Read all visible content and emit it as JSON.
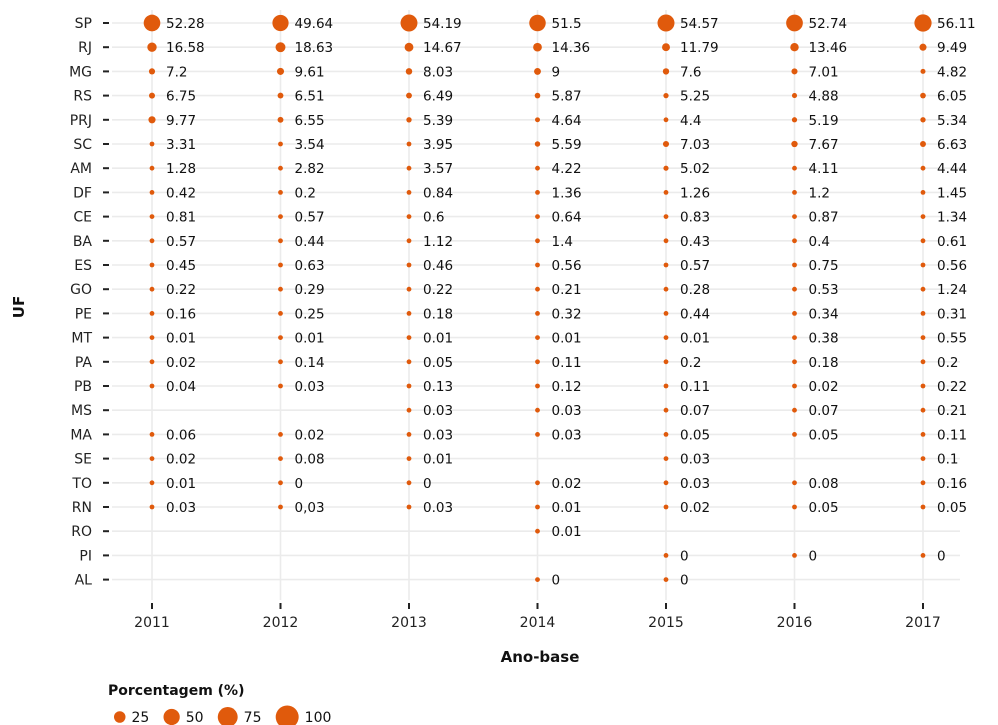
{
  "chart_data": {
    "type": "scatter",
    "title": "",
    "xlabel": "Ano-base",
    "ylabel": "UF",
    "grid": true,
    "legend_position": "bottom-left",
    "marker_color": "#E05A0C",
    "x": [
      "2011",
      "2012",
      "2013",
      "2014",
      "2015",
      "2016",
      "2017"
    ],
    "categories": [
      "SP",
      "RJ",
      "MG",
      "RS",
      "PRJ",
      "SC",
      "AM",
      "DF",
      "CE",
      "BA",
      "ES",
      "GO",
      "PE",
      "MT",
      "PA",
      "PB",
      "MS",
      "MA",
      "SE",
      "TO",
      "RN",
      "RO",
      "PI",
      "AL"
    ],
    "points": [
      {
        "uf": "SP",
        "year": "2011",
        "value": 52.28,
        "label": "52.28"
      },
      {
        "uf": "SP",
        "year": "2012",
        "value": 49.64,
        "label": "49.64"
      },
      {
        "uf": "SP",
        "year": "2013",
        "value": 54.19,
        "label": "54.19"
      },
      {
        "uf": "SP",
        "year": "2014",
        "value": 51.5,
        "label": "51.5"
      },
      {
        "uf": "SP",
        "year": "2015",
        "value": 54.57,
        "label": "54.57"
      },
      {
        "uf": "SP",
        "year": "2016",
        "value": 52.74,
        "label": "52.74"
      },
      {
        "uf": "SP",
        "year": "2017",
        "value": 56.11,
        "label": "56.11"
      },
      {
        "uf": "RJ",
        "year": "2011",
        "value": 16.58,
        "label": "16.58"
      },
      {
        "uf": "RJ",
        "year": "2012",
        "value": 18.63,
        "label": "18.63"
      },
      {
        "uf": "RJ",
        "year": "2013",
        "value": 14.67,
        "label": "14.67"
      },
      {
        "uf": "RJ",
        "year": "2014",
        "value": 14.36,
        "label": "14.36"
      },
      {
        "uf": "RJ",
        "year": "2015",
        "value": 11.79,
        "label": "11.79"
      },
      {
        "uf": "RJ",
        "year": "2016",
        "value": 13.46,
        "label": "13.46"
      },
      {
        "uf": "RJ",
        "year": "2017",
        "value": 9.49,
        "label": "9.49"
      },
      {
        "uf": "MG",
        "year": "2011",
        "value": 7.2,
        "label": "7.2"
      },
      {
        "uf": "MG",
        "year": "2012",
        "value": 9.61,
        "label": "9.61"
      },
      {
        "uf": "MG",
        "year": "2013",
        "value": 8.03,
        "label": "8.03"
      },
      {
        "uf": "MG",
        "year": "2014",
        "value": 9,
        "label": "9"
      },
      {
        "uf": "MG",
        "year": "2015",
        "value": 7.6,
        "label": "7.6"
      },
      {
        "uf": "MG",
        "year": "2016",
        "value": 7.01,
        "label": "7.01"
      },
      {
        "uf": "MG",
        "year": "2017",
        "value": 4.82,
        "label": "4.82"
      },
      {
        "uf": "RS",
        "year": "2011",
        "value": 6.75,
        "label": "6.75"
      },
      {
        "uf": "RS",
        "year": "2012",
        "value": 6.51,
        "label": "6.51"
      },
      {
        "uf": "RS",
        "year": "2013",
        "value": 6.49,
        "label": "6.49"
      },
      {
        "uf": "RS",
        "year": "2014",
        "value": 5.87,
        "label": "5.87"
      },
      {
        "uf": "RS",
        "year": "2015",
        "value": 5.25,
        "label": "5.25"
      },
      {
        "uf": "RS",
        "year": "2016",
        "value": 4.88,
        "label": "4.88"
      },
      {
        "uf": "RS",
        "year": "2017",
        "value": 6.05,
        "label": "6.05"
      },
      {
        "uf": "PRJ",
        "year": "2011",
        "value": 9.77,
        "label": "9.77"
      },
      {
        "uf": "PRJ",
        "year": "2012",
        "value": 6.55,
        "label": "6.55"
      },
      {
        "uf": "PRJ",
        "year": "2013",
        "value": 5.39,
        "label": "5.39"
      },
      {
        "uf": "PRJ",
        "year": "2014",
        "value": 4.64,
        "label": "4.64"
      },
      {
        "uf": "PRJ",
        "year": "2015",
        "value": 4.4,
        "label": "4.4"
      },
      {
        "uf": "PRJ",
        "year": "2016",
        "value": 5.19,
        "label": "5.19"
      },
      {
        "uf": "PRJ",
        "year": "2017",
        "value": 5.34,
        "label": "5.34"
      },
      {
        "uf": "SC",
        "year": "2011",
        "value": 3.31,
        "label": "3.31"
      },
      {
        "uf": "SC",
        "year": "2012",
        "value": 3.54,
        "label": "3.54"
      },
      {
        "uf": "SC",
        "year": "2013",
        "value": 3.95,
        "label": "3.95"
      },
      {
        "uf": "SC",
        "year": "2014",
        "value": 5.59,
        "label": "5.59"
      },
      {
        "uf": "SC",
        "year": "2015",
        "value": 7.03,
        "label": "7.03"
      },
      {
        "uf": "SC",
        "year": "2016",
        "value": 7.67,
        "label": "7.67"
      },
      {
        "uf": "SC",
        "year": "2017",
        "value": 6.63,
        "label": "6.63"
      },
      {
        "uf": "AM",
        "year": "2011",
        "value": 1.28,
        "label": "1.28"
      },
      {
        "uf": "AM",
        "year": "2012",
        "value": 2.82,
        "label": "2.82"
      },
      {
        "uf": "AM",
        "year": "2013",
        "value": 3.57,
        "label": "3.57"
      },
      {
        "uf": "AM",
        "year": "2014",
        "value": 4.22,
        "label": "4.22"
      },
      {
        "uf": "AM",
        "year": "2015",
        "value": 5.02,
        "label": "5.02"
      },
      {
        "uf": "AM",
        "year": "2016",
        "value": 4.11,
        "label": "4.11"
      },
      {
        "uf": "AM",
        "year": "2017",
        "value": 4.44,
        "label": "4.44"
      },
      {
        "uf": "DF",
        "year": "2011",
        "value": 0.42,
        "label": "0.42"
      },
      {
        "uf": "DF",
        "year": "2012",
        "value": 0.2,
        "label": "0.2"
      },
      {
        "uf": "DF",
        "year": "2013",
        "value": 0.84,
        "label": "0.84"
      },
      {
        "uf": "DF",
        "year": "2014",
        "value": 1.36,
        "label": "1.36"
      },
      {
        "uf": "DF",
        "year": "2015",
        "value": 1.26,
        "label": "1.26"
      },
      {
        "uf": "DF",
        "year": "2016",
        "value": 1.2,
        "label": "1.2"
      },
      {
        "uf": "DF",
        "year": "2017",
        "value": 1.45,
        "label": "1.45"
      },
      {
        "uf": "CE",
        "year": "2011",
        "value": 0.81,
        "label": "0.81"
      },
      {
        "uf": "CE",
        "year": "2012",
        "value": 0.57,
        "label": "0.57"
      },
      {
        "uf": "CE",
        "year": "2013",
        "value": 0.6,
        "label": "0.6"
      },
      {
        "uf": "CE",
        "year": "2014",
        "value": 0.64,
        "label": "0.64"
      },
      {
        "uf": "CE",
        "year": "2015",
        "value": 0.83,
        "label": "0.83"
      },
      {
        "uf": "CE",
        "year": "2016",
        "value": 0.87,
        "label": "0.87"
      },
      {
        "uf": "CE",
        "year": "2017",
        "value": 1.34,
        "label": "1.34"
      },
      {
        "uf": "BA",
        "year": "2011",
        "value": 0.57,
        "label": "0.57"
      },
      {
        "uf": "BA",
        "year": "2012",
        "value": 0.44,
        "label": "0.44"
      },
      {
        "uf": "BA",
        "year": "2013",
        "value": 1.12,
        "label": "1.12"
      },
      {
        "uf": "BA",
        "year": "2014",
        "value": 1.4,
        "label": "1.4"
      },
      {
        "uf": "BA",
        "year": "2015",
        "value": 0.43,
        "label": "0.43"
      },
      {
        "uf": "BA",
        "year": "2016",
        "value": 0.4,
        "label": "0.4"
      },
      {
        "uf": "BA",
        "year": "2017",
        "value": 0.61,
        "label": "0.61"
      },
      {
        "uf": "ES",
        "year": "2011",
        "value": 0.45,
        "label": "0.45"
      },
      {
        "uf": "ES",
        "year": "2012",
        "value": 0.63,
        "label": "0.63"
      },
      {
        "uf": "ES",
        "year": "2013",
        "value": 0.46,
        "label": "0.46"
      },
      {
        "uf": "ES",
        "year": "2014",
        "value": 0.56,
        "label": "0.56"
      },
      {
        "uf": "ES",
        "year": "2015",
        "value": 0.57,
        "label": "0.57"
      },
      {
        "uf": "ES",
        "year": "2016",
        "value": 0.75,
        "label": "0.75"
      },
      {
        "uf": "ES",
        "year": "2017",
        "value": 0.56,
        "label": "0.56"
      },
      {
        "uf": "GO",
        "year": "2011",
        "value": 0.22,
        "label": "0.22"
      },
      {
        "uf": "GO",
        "year": "2012",
        "value": 0.29,
        "label": "0.29"
      },
      {
        "uf": "GO",
        "year": "2013",
        "value": 0.22,
        "label": "0.22"
      },
      {
        "uf": "GO",
        "year": "2014",
        "value": 0.21,
        "label": "0.21"
      },
      {
        "uf": "GO",
        "year": "2015",
        "value": 0.28,
        "label": "0.28"
      },
      {
        "uf": "GO",
        "year": "2016",
        "value": 0.53,
        "label": "0.53"
      },
      {
        "uf": "GO",
        "year": "2017",
        "value": 1.24,
        "label": "1.24"
      },
      {
        "uf": "PE",
        "year": "2011",
        "value": 0.16,
        "label": "0.16"
      },
      {
        "uf": "PE",
        "year": "2012",
        "value": 0.25,
        "label": "0.25"
      },
      {
        "uf": "PE",
        "year": "2013",
        "value": 0.18,
        "label": "0.18"
      },
      {
        "uf": "PE",
        "year": "2014",
        "value": 0.32,
        "label": "0.32"
      },
      {
        "uf": "PE",
        "year": "2015",
        "value": 0.44,
        "label": "0.44"
      },
      {
        "uf": "PE",
        "year": "2016",
        "value": 0.34,
        "label": "0.34"
      },
      {
        "uf": "PE",
        "year": "2017",
        "value": 0.31,
        "label": "0.31"
      },
      {
        "uf": "MT",
        "year": "2011",
        "value": 0.01,
        "label": "0.01"
      },
      {
        "uf": "MT",
        "year": "2012",
        "value": 0.01,
        "label": "0.01"
      },
      {
        "uf": "MT",
        "year": "2013",
        "value": 0.01,
        "label": "0.01"
      },
      {
        "uf": "MT",
        "year": "2014",
        "value": 0.01,
        "label": "0.01"
      },
      {
        "uf": "MT",
        "year": "2015",
        "value": 0.01,
        "label": "0.01"
      },
      {
        "uf": "MT",
        "year": "2016",
        "value": 0.38,
        "label": "0.38"
      },
      {
        "uf": "MT",
        "year": "2017",
        "value": 0.55,
        "label": "0.55"
      },
      {
        "uf": "PA",
        "year": "2011",
        "value": 0.02,
        "label": "0.02"
      },
      {
        "uf": "PA",
        "year": "2012",
        "value": 0.14,
        "label": "0.14"
      },
      {
        "uf": "PA",
        "year": "2013",
        "value": 0.05,
        "label": "0.05"
      },
      {
        "uf": "PA",
        "year": "2014",
        "value": 0.11,
        "label": "0.11"
      },
      {
        "uf": "PA",
        "year": "2015",
        "value": 0.2,
        "label": "0.2"
      },
      {
        "uf": "PA",
        "year": "2016",
        "value": 0.18,
        "label": "0.18"
      },
      {
        "uf": "PA",
        "year": "2017",
        "value": 0.2,
        "label": "0.2"
      },
      {
        "uf": "PB",
        "year": "2011",
        "value": 0.04,
        "label": "0.04"
      },
      {
        "uf": "PB",
        "year": "2012",
        "value": 0.03,
        "label": "0.03"
      },
      {
        "uf": "PB",
        "year": "2013",
        "value": 0.13,
        "label": "0.13"
      },
      {
        "uf": "PB",
        "year": "2014",
        "value": 0.12,
        "label": "0.12"
      },
      {
        "uf": "PB",
        "year": "2015",
        "value": 0.11,
        "label": "0.11"
      },
      {
        "uf": "PB",
        "year": "2016",
        "value": 0.02,
        "label": "0.02"
      },
      {
        "uf": "PB",
        "year": "2017",
        "value": 0.22,
        "label": "0.22"
      },
      {
        "uf": "MS",
        "year": "2013",
        "value": 0.03,
        "label": "0.03"
      },
      {
        "uf": "MS",
        "year": "2014",
        "value": 0.03,
        "label": "0.03"
      },
      {
        "uf": "MS",
        "year": "2015",
        "value": 0.07,
        "label": "0.07"
      },
      {
        "uf": "MS",
        "year": "2016",
        "value": 0.07,
        "label": "0.07"
      },
      {
        "uf": "MS",
        "year": "2017",
        "value": 0.21,
        "label": "0.21"
      },
      {
        "uf": "MA",
        "year": "2011",
        "value": 0.06,
        "label": "0.06"
      },
      {
        "uf": "MA",
        "year": "2012",
        "value": 0.02,
        "label": "0.02"
      },
      {
        "uf": "MA",
        "year": "2013",
        "value": 0.03,
        "label": "0.03"
      },
      {
        "uf": "MA",
        "year": "2014",
        "value": 0.03,
        "label": "0.03"
      },
      {
        "uf": "MA",
        "year": "2015",
        "value": 0.05,
        "label": "0.05"
      },
      {
        "uf": "MA",
        "year": "2016",
        "value": 0.05,
        "label": "0.05"
      },
      {
        "uf": "MA",
        "year": "2017",
        "value": 0.11,
        "label": "0.11"
      },
      {
        "uf": "SE",
        "year": "2011",
        "value": 0.02,
        "label": "0.02"
      },
      {
        "uf": "SE",
        "year": "2012",
        "value": 0.08,
        "label": "0.08"
      },
      {
        "uf": "SE",
        "year": "2013",
        "value": 0.01,
        "label": "0.01"
      },
      {
        "uf": "SE",
        "year": "2015",
        "value": 0.03,
        "label": "0.03"
      },
      {
        "uf": "SE",
        "year": "2017",
        "value": 0.1,
        "label": "0.1"
      },
      {
        "uf": "TO",
        "year": "2011",
        "value": 0.01,
        "label": "0.01"
      },
      {
        "uf": "TO",
        "year": "2012",
        "value": 0,
        "label": "0"
      },
      {
        "uf": "TO",
        "year": "2013",
        "value": 0,
        "label": "0"
      },
      {
        "uf": "TO",
        "year": "2014",
        "value": 0.02,
        "label": "0.02"
      },
      {
        "uf": "TO",
        "year": "2015",
        "value": 0.03,
        "label": "0.03"
      },
      {
        "uf": "TO",
        "year": "2016",
        "value": 0.08,
        "label": "0.08"
      },
      {
        "uf": "TO",
        "year": "2017",
        "value": 0.16,
        "label": "0.16"
      },
      {
        "uf": "RN",
        "year": "2011",
        "value": 0.03,
        "label": "0.03"
      },
      {
        "uf": "RN",
        "year": "2012",
        "value": 0.03,
        "label": "0,03"
      },
      {
        "uf": "RN",
        "year": "2013",
        "value": 0.03,
        "label": "0.03"
      },
      {
        "uf": "RN",
        "year": "2014",
        "value": 0.01,
        "label": "0.01"
      },
      {
        "uf": "RN",
        "year": "2015",
        "value": 0.02,
        "label": "0.02"
      },
      {
        "uf": "RN",
        "year": "2016",
        "value": 0.05,
        "label": "0.05"
      },
      {
        "uf": "RN",
        "year": "2017",
        "value": 0.05,
        "label": "0.05"
      },
      {
        "uf": "RO",
        "year": "2014",
        "value": 0.01,
        "label": "0.01"
      },
      {
        "uf": "PI",
        "year": "2015",
        "value": 0,
        "label": "0"
      },
      {
        "uf": "PI",
        "year": "2016",
        "value": 0,
        "label": "0"
      },
      {
        "uf": "PI",
        "year": "2017",
        "value": 0,
        "label": "0"
      },
      {
        "uf": "AL",
        "year": "2014",
        "value": 0,
        "label": "0"
      },
      {
        "uf": "AL",
        "year": "2015",
        "value": 0,
        "label": "0"
      }
    ],
    "legend": {
      "title": "Porcentagem (%)",
      "items": [
        {
          "value": 25,
          "label": "25"
        },
        {
          "value": 50,
          "label": "50"
        },
        {
          "value": 75,
          "label": "75"
        },
        {
          "value": 100,
          "label": "100"
        }
      ]
    }
  }
}
